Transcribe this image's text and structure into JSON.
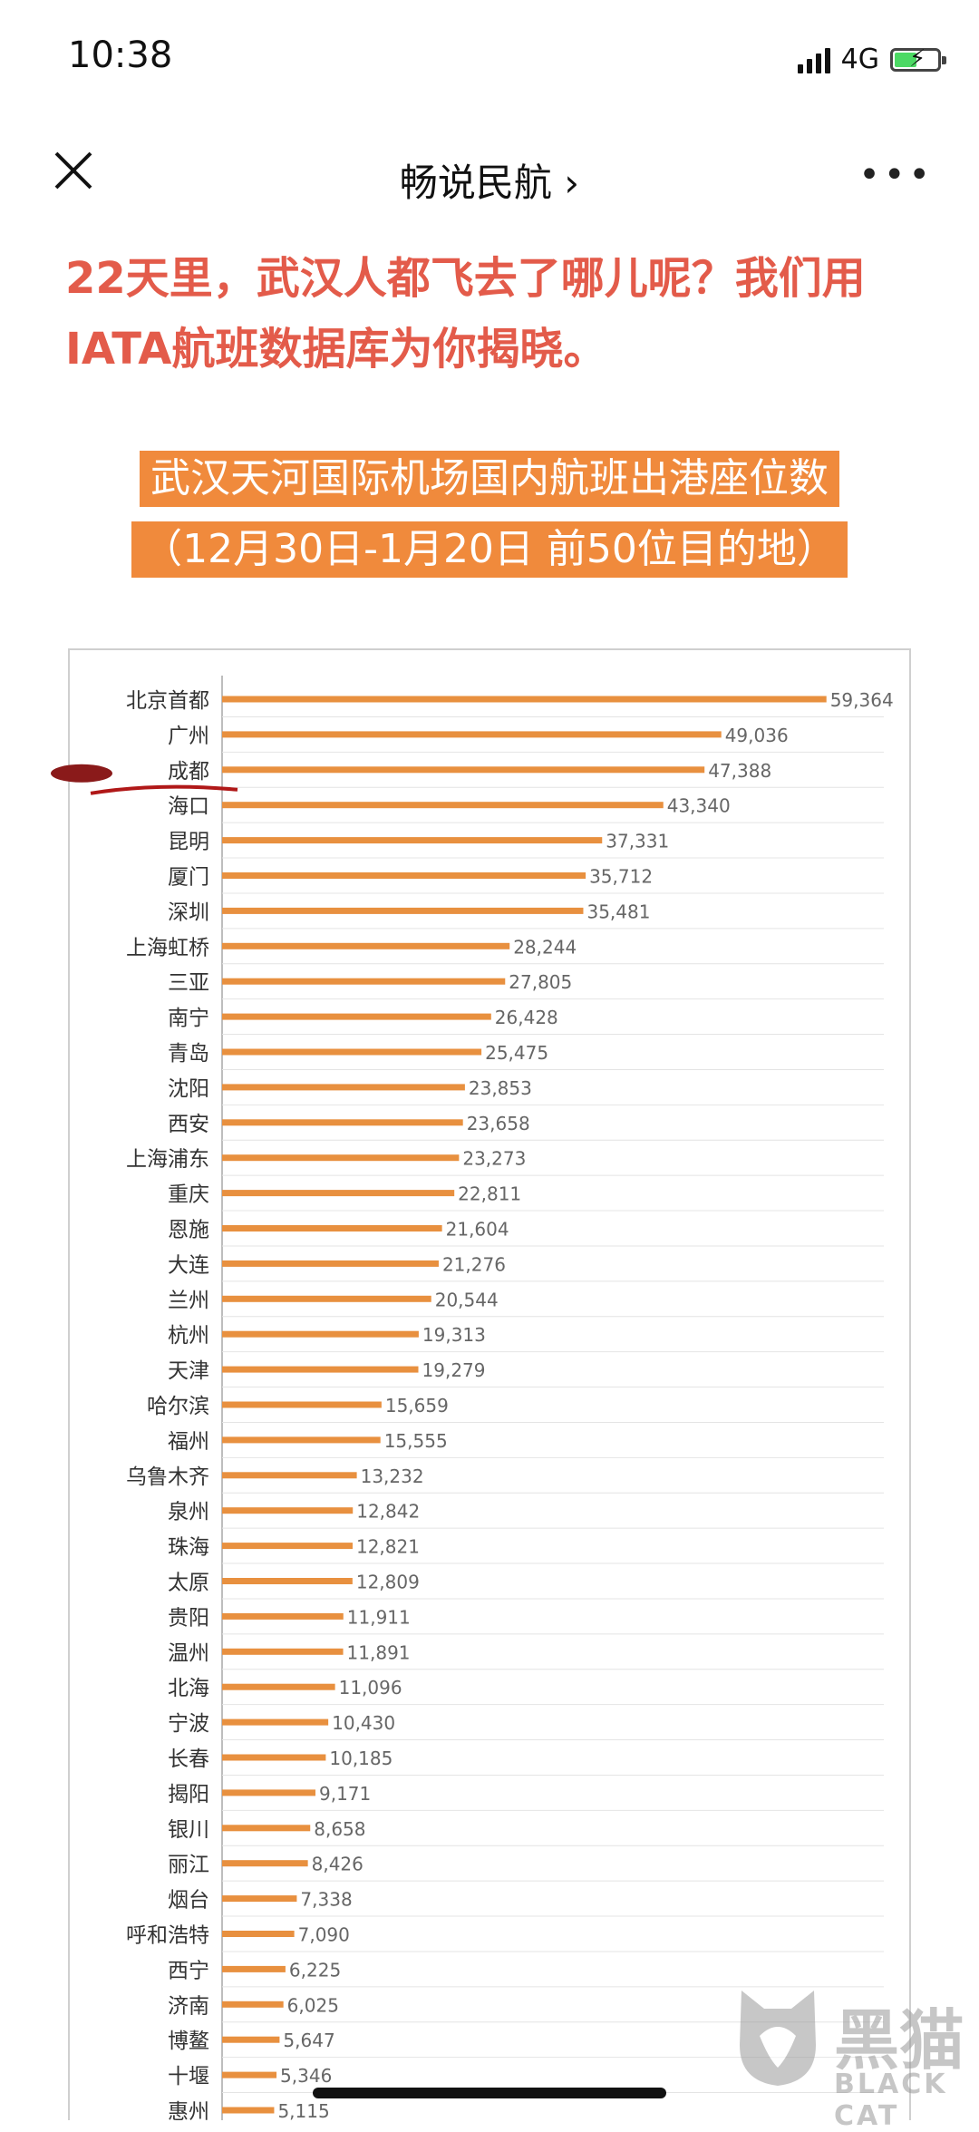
{
  "status_bar": {
    "time": "10:38",
    "network": "4G"
  },
  "nav": {
    "title": "畅说民航 ›"
  },
  "headline": "22天里，武汉人都飞去了哪儿呢？我们用IATA航班数据库为你揭晓。",
  "banner": {
    "line1": "武汉天河国际机场国内航班出港座位数",
    "line2": "（12月30日-1月20日 前50位目的地）"
  },
  "colors": {
    "bar": "#e8903f",
    "headline": "#e35b4a",
    "banner_bg": "#f08a3c"
  },
  "chart_data": {
    "type": "bar",
    "orientation": "horizontal",
    "title": "武汉天河国际机场国内航班出港座位数",
    "subtitle": "（12月30日-1月20日 前50位目的地）",
    "xlim": [
      0,
      65000
    ],
    "grid": true,
    "highlight": "成都",
    "categories": [
      "北京首都",
      "广州",
      "成都",
      "海口",
      "昆明",
      "厦门",
      "深圳",
      "上海虹桥",
      "三亚",
      "南宁",
      "青岛",
      "沈阳",
      "西安",
      "上海浦东",
      "重庆",
      "恩施",
      "大连",
      "兰州",
      "杭州",
      "天津",
      "哈尔滨",
      "福州",
      "乌鲁木齐",
      "泉州",
      "珠海",
      "太原",
      "贵阳",
      "温州",
      "北海",
      "宁波",
      "长春",
      "揭阳",
      "银川",
      "丽江",
      "烟台",
      "呼和浩特",
      "西宁",
      "济南",
      "博鳌",
      "十堰",
      "惠州"
    ],
    "values": [
      59364,
      49036,
      47388,
      43340,
      37331,
      35712,
      35481,
      28244,
      27805,
      26428,
      25475,
      23853,
      23658,
      23273,
      22811,
      21604,
      21276,
      20544,
      19313,
      19279,
      15659,
      15555,
      13232,
      12842,
      12821,
      12809,
      11911,
      11891,
      11096,
      10430,
      10185,
      9171,
      8658,
      8426,
      7338,
      7090,
      6225,
      6025,
      5647,
      5346,
      5115
    ],
    "value_labels": [
      "59,364",
      "49,036",
      "47,388",
      "43,340",
      "37,331",
      "35,712",
      "35,481",
      "28,244",
      "27,805",
      "26,428",
      "25,475",
      "23,853",
      "23,658",
      "23,273",
      "22,811",
      "21,604",
      "21,276",
      "20,544",
      "19,313",
      "19,279",
      "15,659",
      "15,555",
      "13,232",
      "12,842",
      "12,821",
      "12,809",
      "11,911",
      "11,891",
      "11,096",
      "10,430",
      "10,185",
      "9,171",
      "8,658",
      "8,426",
      "7,338",
      "7,090",
      "6,225",
      "6,025",
      "5,647",
      "5,346",
      "5,115"
    ]
  },
  "watermark": {
    "title": "黑猫",
    "subtitle": "BLACK CAT"
  }
}
